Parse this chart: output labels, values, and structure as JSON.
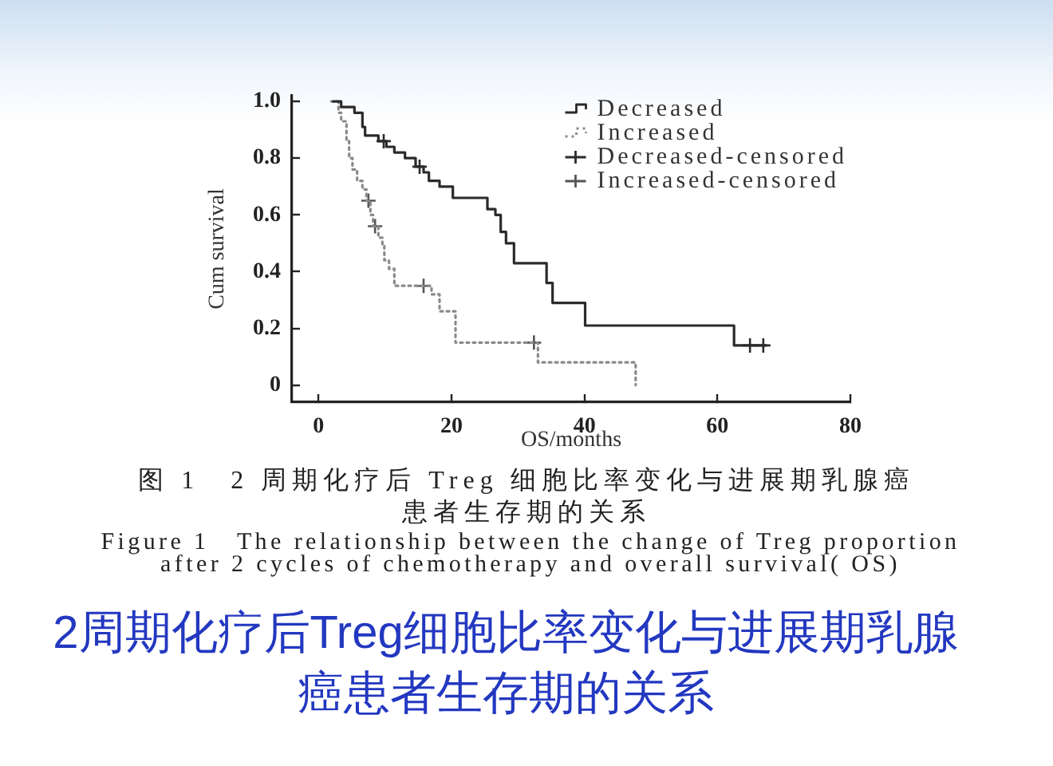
{
  "chart_data": {
    "type": "step",
    "title": "2周期化疗后Treg细胞比率变化与进展期乳腺癌患者生存期的关系",
    "xlabel": "OS/months",
    "ylabel": "Cum survival",
    "annotations": [
      "图 1　2 周期化疗后 Treg 细胞比率变化与进展期乳腺癌患者生存期的关系",
      "Figure 1　The relationship between the change of Treg proportion after 2 cycles of chemotherapy and overall survival( OS)"
    ],
    "xlim": [
      -4,
      80
    ],
    "xticks": [
      0,
      20,
      40,
      60,
      80
    ],
    "ylim": [
      -0.06,
      1.02
    ],
    "yticks": [
      0,
      0.2,
      0.4,
      0.6,
      0.8,
      {
        "value": 1,
        "label": "1.0"
      }
    ],
    "grid": false,
    "legend": "top right",
    "series": [
      {
        "name": "Decreased",
        "line_style": "solid",
        "color": "#2b2b2b",
        "x": [
          2.2,
          3.4,
          5.4,
          6.6,
          7.0,
          9.0,
          10.2,
          11.4,
          13.0,
          14.6,
          15.8,
          16.6,
          18.2,
          20.2,
          25.4,
          26.6,
          27.4,
          28.2,
          29.4,
          34.3,
          35.2,
          40.1,
          62.5,
          67.3
        ],
        "values": [
          1.0,
          0.98,
          0.96,
          0.91,
          0.88,
          0.86,
          0.84,
          0.82,
          0.8,
          0.77,
          0.75,
          0.72,
          0.7,
          0.66,
          0.62,
          0.6,
          0.54,
          0.5,
          0.43,
          0.36,
          0.29,
          0.21,
          0.14,
          0.14
        ]
      },
      {
        "name": "Increased",
        "line_style": "dotted",
        "color": "#8a8a8a",
        "x": [
          1.9,
          3.0,
          3.4,
          4.2,
          4.6,
          5.1,
          5.8,
          6.6,
          7.2,
          7.8,
          8.2,
          9.0,
          9.6,
          9.9,
          10.6,
          11.4,
          17.0,
          18.2,
          20.6,
          33.0,
          47.7
        ],
        "values": [
          1.0,
          0.96,
          0.93,
          0.86,
          0.8,
          0.76,
          0.72,
          0.69,
          0.65,
          0.6,
          0.56,
          0.52,
          0.49,
          0.44,
          0.41,
          0.35,
          0.32,
          0.26,
          0.15,
          0.08,
          0
        ]
      },
      {
        "name": "Decreased-censored",
        "type": "scatter",
        "marker": "cross",
        "color": "#2b2b2b",
        "x": [
          9.8,
          15.2,
          64.9,
          66.9
        ],
        "values": [
          0.86,
          0.77,
          0.14,
          0.14
        ]
      },
      {
        "name": "Increased-censored",
        "type": "scatter",
        "marker": "cross",
        "color": "#555555",
        "x": [
          7.5,
          8.5,
          15.8,
          32.4
        ],
        "values": [
          0.65,
          0.56,
          0.35,
          0.15
        ]
      }
    ]
  }
}
